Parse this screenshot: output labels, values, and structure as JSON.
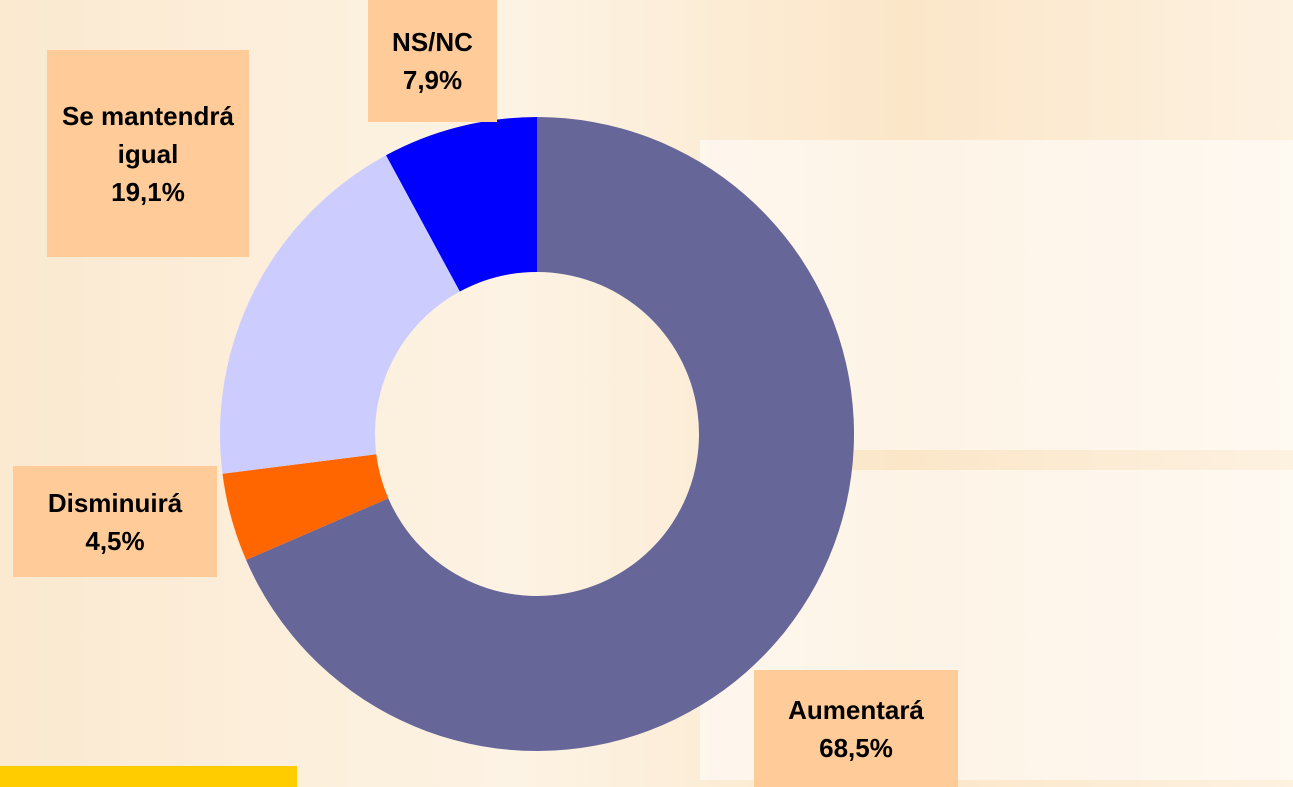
{
  "chart_data": {
    "type": "donut",
    "categories": [
      "Aumentará",
      "Disminuirá",
      "Se mantendrá igual",
      "NS/NC"
    ],
    "values": [
      68.5,
      4.5,
      19.1,
      7.9
    ],
    "value_labels": [
      "68,5%",
      "4,5%",
      "19,1%",
      "7,9%"
    ],
    "colors": [
      "#666699",
      "#ff6600",
      "#ccccff",
      "#0000ff"
    ]
  }
}
